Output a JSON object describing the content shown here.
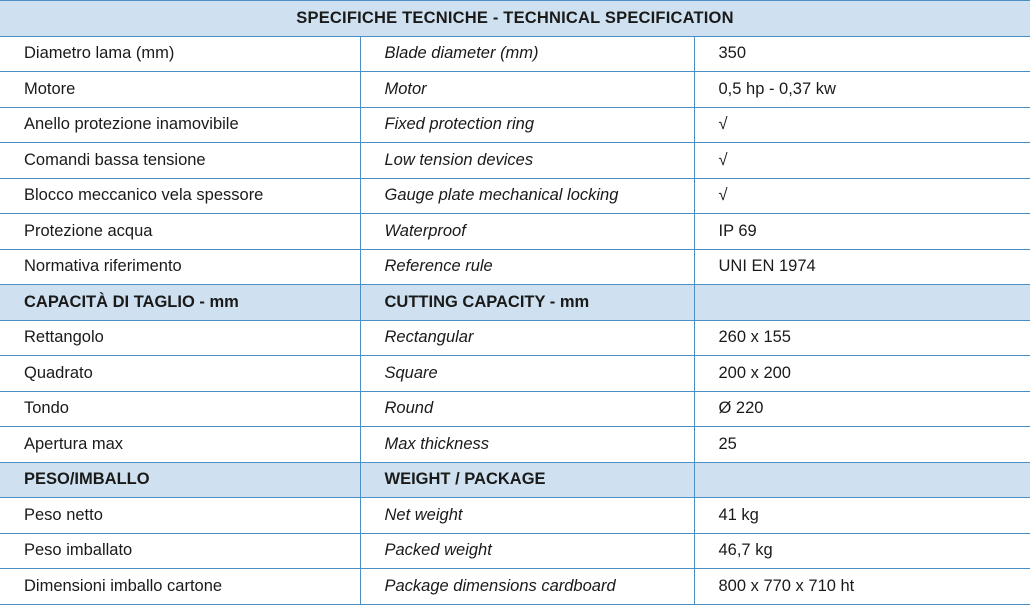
{
  "title": "SPECIFICHE TECNICHE - TECHNICAL SPECIFICATION",
  "colors": {
    "header_bg": "#cfe1f0",
    "border": "#4a90c4"
  },
  "rows": [
    {
      "type": "data",
      "it": "Diametro lama (mm)",
      "en": "Blade diameter (mm)",
      "value": "350"
    },
    {
      "type": "data",
      "it": "Motore",
      "en": "Motor",
      "value": "0,5 hp - 0,37 kw"
    },
    {
      "type": "data",
      "it": "Anello protezione inamovibile",
      "en": "Fixed protection ring",
      "value": "√"
    },
    {
      "type": "data",
      "it": "Comandi bassa tensione",
      "en": "Low tension devices",
      "value": "√"
    },
    {
      "type": "data",
      "it": "Blocco meccanico vela spessore",
      "en": "Gauge plate mechanical locking",
      "value": "√"
    },
    {
      "type": "data",
      "it": "Protezione acqua",
      "en": "Waterproof",
      "value": "IP 69"
    },
    {
      "type": "data",
      "it": "Normativa riferimento",
      "en": "Reference rule",
      "value": "UNI EN 1974"
    },
    {
      "type": "section",
      "it": "CAPACITÀ DI TAGLIO - mm",
      "en": "CUTTING CAPACITY - mm",
      "value": ""
    },
    {
      "type": "data",
      "it": "Rettangolo",
      "en": "Rectangular",
      "value": "260 x 155"
    },
    {
      "type": "data",
      "it": "Quadrato",
      "en": "Square",
      "value": "200 x 200"
    },
    {
      "type": "data",
      "it": "Tondo",
      "en": "Round",
      "value": "Ø 220"
    },
    {
      "type": "data",
      "it": "Apertura max",
      "en": "Max thickness",
      "value": "25"
    },
    {
      "type": "section",
      "it": "PESO/IMBALLO",
      "en": "WEIGHT / PACKAGE",
      "value": ""
    },
    {
      "type": "data",
      "it": "Peso netto",
      "en": "Net weight",
      "value": "41 kg"
    },
    {
      "type": "data",
      "it": "Peso imballato",
      "en": "Packed weight",
      "value": "46,7 kg"
    },
    {
      "type": "data",
      "it": "Dimensioni imballo cartone",
      "en": "Package dimensions cardboard",
      "value": "800 x 770 x 710 ht"
    }
  ]
}
